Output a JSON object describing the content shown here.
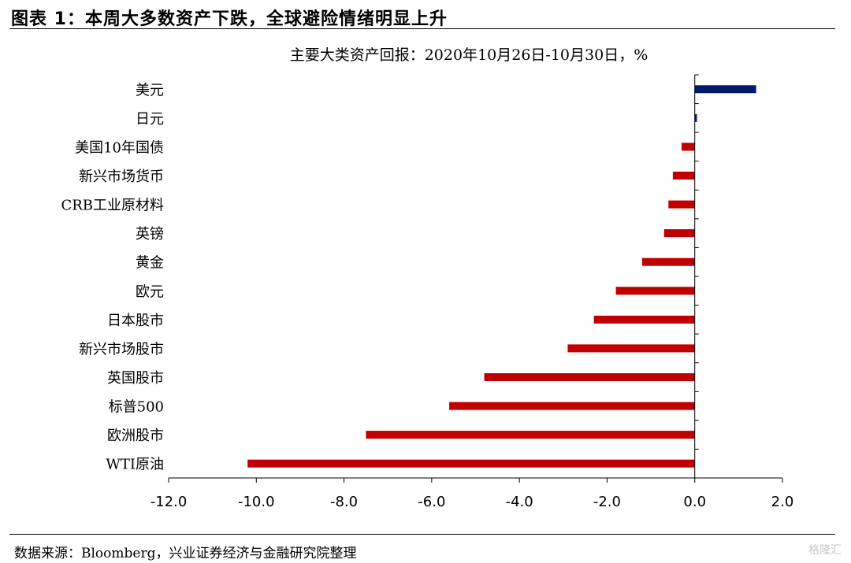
{
  "header": {
    "title": "图表 1：本周大多数资产下跌，全球避险情绪明显上升"
  },
  "footer": {
    "source": "数据来源：Bloomberg，兴业证券经济与金融研究院整理",
    "watermark": "格隆汇"
  },
  "colors": {
    "positive": "#001a6e",
    "negative": "#c00000"
  },
  "chart_data": {
    "type": "bar",
    "orientation": "horizontal",
    "title": "主要大类资产回报：2020年10月26日-10月30日，%",
    "categories": [
      "美元",
      "日元",
      "美国10年国债",
      "新兴市场货币",
      "CRB工业原材料",
      "英镑",
      "黄金",
      "欧元",
      "日本股市",
      "新兴市场股市",
      "英国股市",
      "标普500",
      "欧洲股市",
      "WTI原油"
    ],
    "values": [
      1.4,
      0.05,
      -0.3,
      -0.5,
      -0.6,
      -0.7,
      -1.2,
      -1.8,
      -2.3,
      -2.9,
      -4.8,
      -5.6,
      -7.5,
      -10.2
    ],
    "xlim": [
      -12.0,
      2.0
    ],
    "xticks": [
      -12.0,
      -10.0,
      -8.0,
      -6.0,
      -4.0,
      -2.0,
      0.0,
      2.0
    ],
    "xtick_labels": [
      "-12.0",
      "-10.0",
      "-8.0",
      "-6.0",
      "-4.0",
      "-2.0",
      "0.0",
      "2.0"
    ],
    "grid": false,
    "legend": "none"
  }
}
